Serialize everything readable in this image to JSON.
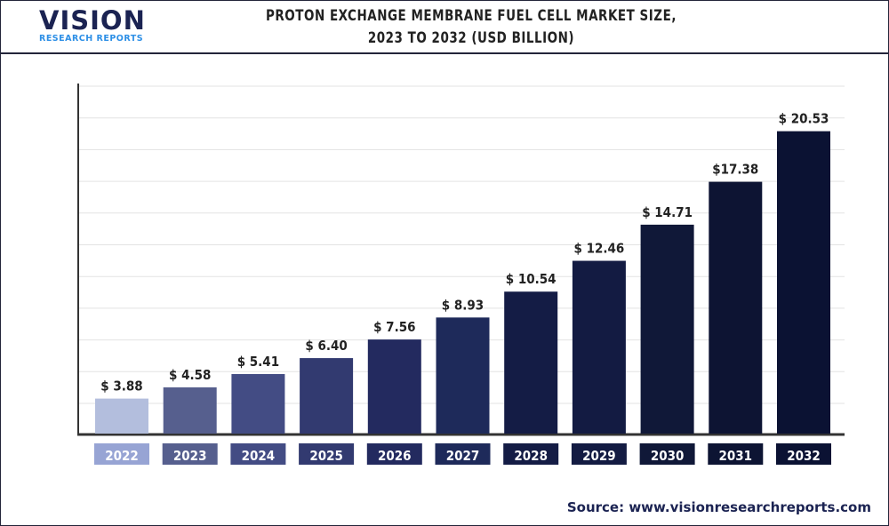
{
  "header": {
    "logo_main": "VISION",
    "logo_sub": "RESEARCH REPORTS",
    "title_line1": "PROTON EXCHANGE MEMBRANE FUEL CELL MARKET SIZE,",
    "title_line2": "2023 TO 2032 (USD BILLION)"
  },
  "source": "Source: www.visionresearchreports.com",
  "chart_data": {
    "type": "bar",
    "title": "PROTON EXCHANGE MEMBRANE FUEL CELL MARKET SIZE, 2023 TO 2032 (USD BILLION)",
    "categories": [
      "2022",
      "2023",
      "2024",
      "2025",
      "2026",
      "2027",
      "2028",
      "2029",
      "2030",
      "2031",
      "2032"
    ],
    "values": [
      3.88,
      4.58,
      5.41,
      6.4,
      7.56,
      8.93,
      10.54,
      12.46,
      14.71,
      17.38,
      20.53
    ],
    "data_labels": [
      "$ 3.88",
      "$ 4.58",
      "$ 5.41",
      "$ 6.40",
      "$ 7.56",
      "$ 8.93",
      "$ 10.54",
      "$ 12.46",
      "$ 14.71",
      "$17.38",
      "$ 20.53"
    ],
    "colors": [
      "#b3bedd",
      "#565f8e",
      "#434c84",
      "#323a70",
      "#232a5f",
      "#1e2a5a",
      "#141c45",
      "#131b42",
      "#101838",
      "#0d1433",
      "#0b1233"
    ],
    "ylim": [
      1.7,
      23.5
    ],
    "grid": true,
    "legend": "none"
  }
}
